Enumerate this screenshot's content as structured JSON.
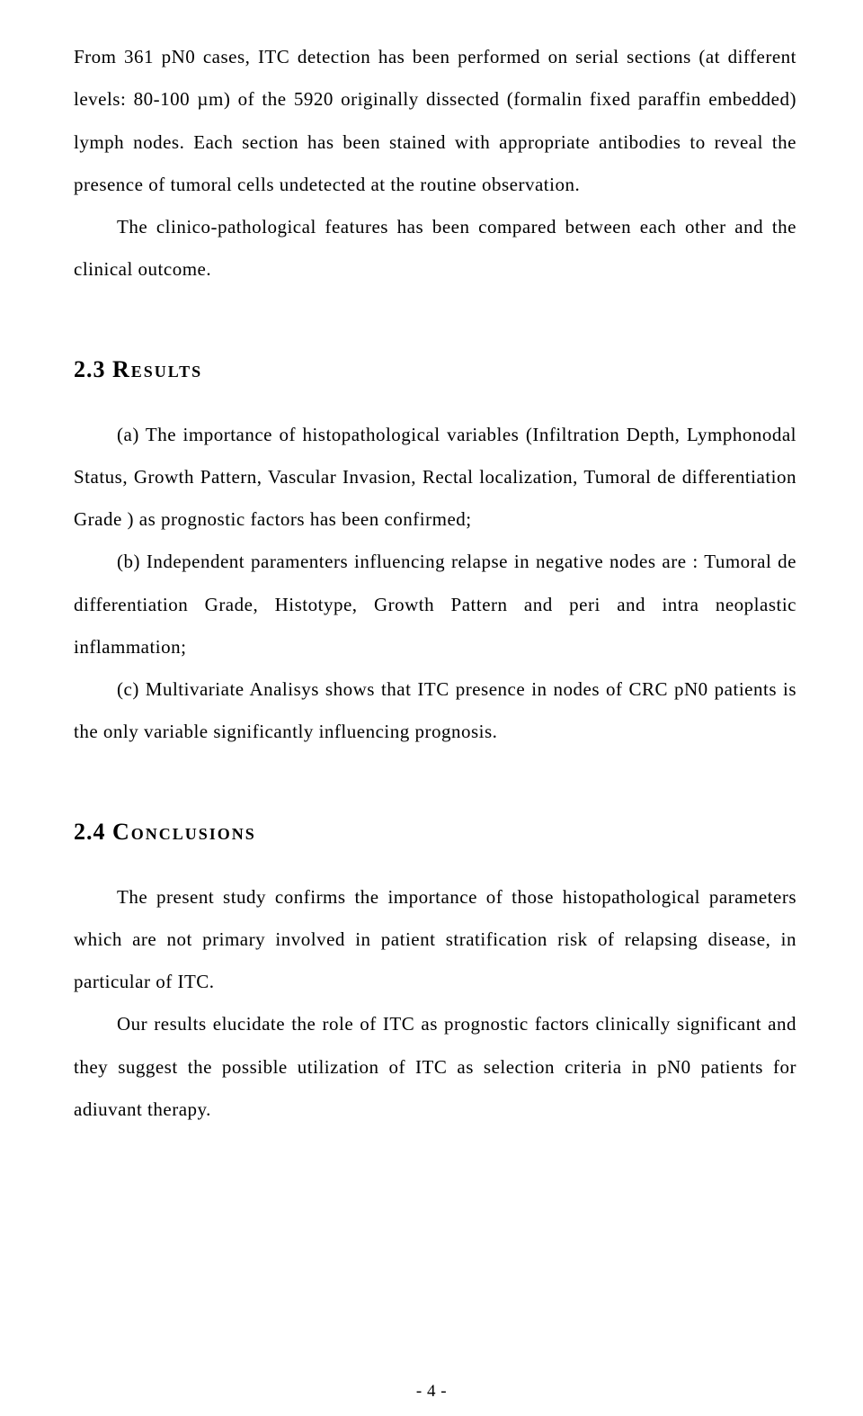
{
  "paragraphs": {
    "p1": "From 361 pN0 cases, ITC detection has been performed on serial sections (at different levels: 80-100 µm) of the 5920 originally dissected (formalin fixed paraffin embedded) lymph nodes. Each section has been stained with appropriate antibodies to reveal the presence of tumoral cells undetected at the routine observation.",
    "p2": "The clinico-pathological features has been compared between each other and the clinical outcome.",
    "p3a": "(a)  The  importance  of  histopathological  variables  (Infiltration  Depth, Lymphonodal Status, Growth Pattern, Vascular Invasion, Rectal localization, Tumoral de differentiation Grade ) as prognostic factors has been confirmed;",
    "p3b": "(b) Independent paramenters influencing relapse in negative nodes are : Tumoral de differentiation Grade, Histotype, Growth Pattern and peri and intra neoplastic inflammation;",
    "p3c": "(c) Multivariate Analisys shows  that ITC presence in nodes of CRC pN0 patients is the only variable significantly influencing prognosis.",
    "p4": "The present study confirms the importance of those histopathological parameters which are not primary involved in patient stratification risk of relapsing disease, in particular of ITC.",
    "p5": "Our results elucidate the role of ITC as prognostic factors clinically significant and they suggest the possible utilization of ITC as selection criteria in pN0 patients for adiuvant therapy."
  },
  "headings": {
    "h1_num": "2.3",
    "h1_text": "Results",
    "h2_num": "2.4",
    "h2_text": "Conclusions"
  },
  "footer": "- 4 -"
}
